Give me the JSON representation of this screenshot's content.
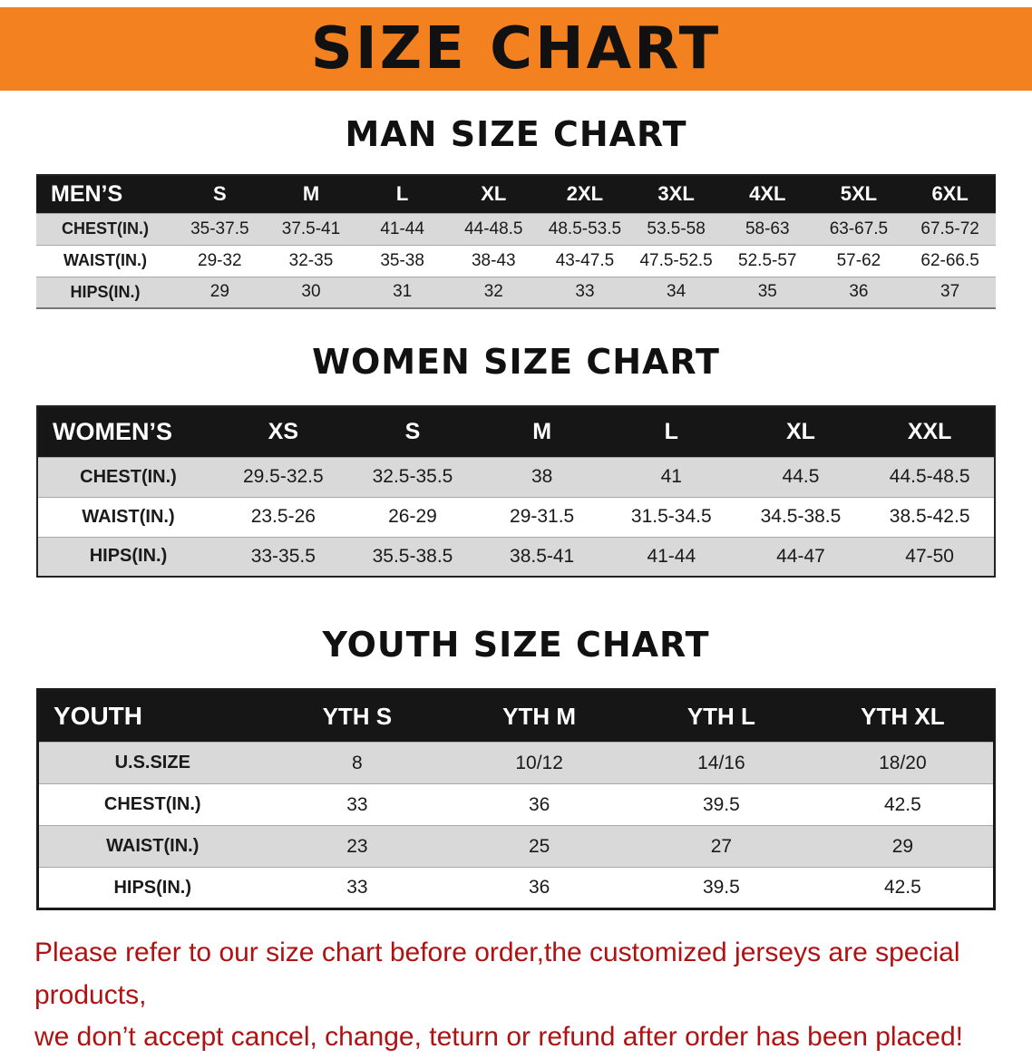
{
  "theme": {
    "banner_bg": "#f48120",
    "heading_text": "#111111",
    "header_row_bg": "#161616",
    "header_row_text": "#ffffff",
    "stripe_row_bg": "#d9d9d9",
    "notice_text": "#b01212"
  },
  "banner": {
    "title": "SIZE CHART"
  },
  "sections": [
    {
      "heading": "MAN SIZE CHART",
      "table": {
        "label": "MEN’S",
        "columns": [
          "S",
          "M",
          "L",
          "XL",
          "2XL",
          "3XL",
          "4XL",
          "5XL",
          "6XL"
        ],
        "rows": [
          {
            "label": "CHEST(IN.)",
            "values": [
              "35-37.5",
              "37.5-41",
              "41-44",
              "44-48.5",
              "48.5-53.5",
              "53.5-58",
              "58-63",
              "63-67.5",
              "67.5-72"
            ]
          },
          {
            "label": "WAIST(IN.)",
            "values": [
              "29-32",
              "32-35",
              "35-38",
              "38-43",
              "43-47.5",
              "47.5-52.5",
              "52.5-57",
              "57-62",
              "62-66.5"
            ]
          },
          {
            "label": "HIPS(IN.)",
            "values": [
              "29",
              "30",
              "31",
              "32",
              "33",
              "34",
              "35",
              "36",
              "37"
            ]
          }
        ]
      }
    },
    {
      "heading": "WOMEN SIZE CHART",
      "table": {
        "label": "WOMEN’S",
        "columns": [
          "XS",
          "S",
          "M",
          "L",
          "XL",
          "XXL"
        ],
        "rows": [
          {
            "label": "CHEST(IN.)",
            "values": [
              "29.5-32.5",
              "32.5-35.5",
              "38",
              "41",
              "44.5",
              "44.5-48.5"
            ]
          },
          {
            "label": "WAIST(IN.)",
            "values": [
              "23.5-26",
              "26-29",
              "29-31.5",
              "31.5-34.5",
              "34.5-38.5",
              "38.5-42.5"
            ]
          },
          {
            "label": "HIPS(IN.)",
            "values": [
              "33-35.5",
              "35.5-38.5",
              "38.5-41",
              "41-44",
              "44-47",
              "47-50"
            ]
          }
        ]
      }
    },
    {
      "heading": "YOUTH SIZE CHART",
      "table": {
        "label": "YOUTH",
        "columns": [
          "YTH S",
          "YTH M",
          "YTH L",
          "YTH XL"
        ],
        "rows": [
          {
            "label": "U.S.SIZE",
            "values": [
              "8",
              "10/12",
              "14/16",
              "18/20"
            ]
          },
          {
            "label": "CHEST(IN.)",
            "values": [
              "33",
              "36",
              "39.5",
              "42.5"
            ]
          },
          {
            "label": "WAIST(IN.)",
            "values": [
              "23",
              "25",
              "27",
              "29"
            ]
          },
          {
            "label": "HIPS(IN.)",
            "values": [
              "33",
              "36",
              "39.5",
              "42.5"
            ]
          }
        ]
      }
    }
  ],
  "footer": {
    "line1": "Please refer to our size chart before order,the customized jerseys are special products,",
    "line2": "we don’t accept cancel, change, teturn or refund after order has been placed!"
  }
}
